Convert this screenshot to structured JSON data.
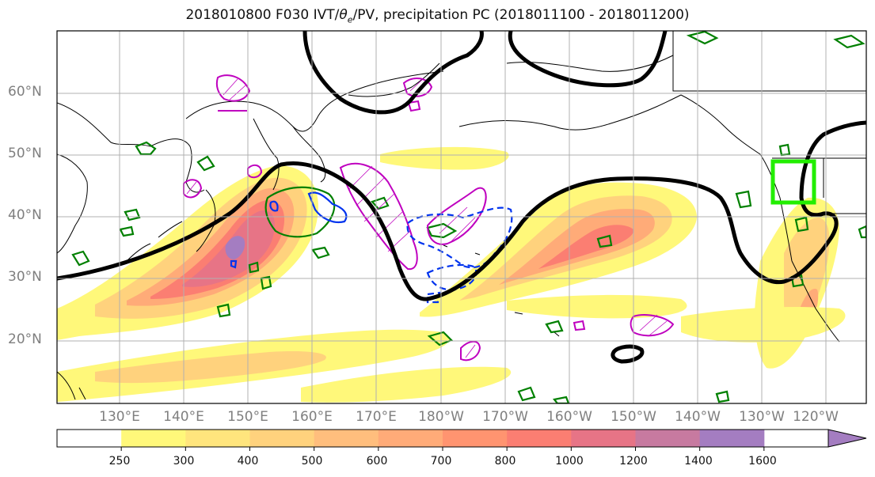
{
  "title": {
    "prefix": "2018010800 F030 IVT/",
    "theta": "θ",
    "theta_sub": "e",
    "suffix": "/PV, precipitation PC (2018011100 - 2018011200)"
  },
  "lat_labels": [
    "60°N",
    "50°N",
    "40°N",
    "30°N",
    "20°N"
  ],
  "lon_labels": [
    "130°E",
    "140°E",
    "150°E",
    "160°E",
    "170°E",
    "180°W",
    "170°W",
    "160°W",
    "150°W",
    "140°W",
    "130°W",
    "120°W"
  ],
  "colorbar": {
    "labels": [
      "250",
      "300",
      "400",
      "500",
      "600",
      "700",
      "800",
      "1000",
      "1200",
      "1400",
      "1600"
    ],
    "colors": [
      "#ffffff",
      "#fff87a",
      "#ffe57d",
      "#ffd27d",
      "#ffbe7d",
      "#ffab78",
      "#ff9470",
      "#fb7e72",
      "#e77486",
      "#c77aa0",
      "#a47dc1"
    ]
  },
  "colors": {
    "contour_theta": "#000000",
    "pv_positive": "#bf00bf",
    "pv_negative": "#0033ee",
    "precip_pc": "#008000",
    "target_box": "#22ee00"
  }
}
